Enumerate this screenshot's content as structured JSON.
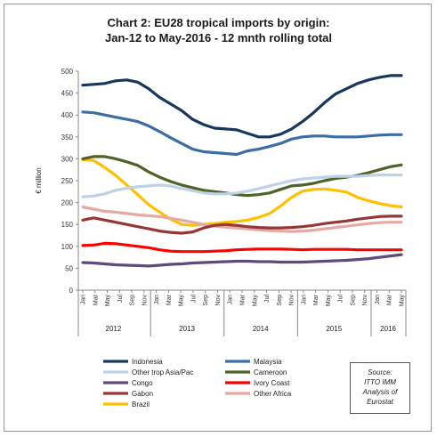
{
  "chart_data": {
    "type": "line",
    "title": "Chart 2: EU28 tropical imports by origin:\nJan-12 to May-2016 - 12 mnth rolling total",
    "ylabel": "€ million",
    "xlabel": "",
    "ylim": [
      0,
      500
    ],
    "yticks": [
      "0",
      "50",
      "100",
      "150",
      "200",
      "250",
      "300",
      "350",
      "400",
      "450",
      "500"
    ],
    "x_tick_labels": [
      "Jan",
      "Mar",
      "May",
      "Jul",
      "Sep",
      "Nov",
      "Jan",
      "Mar",
      "May",
      "Jul",
      "Sep",
      "Nov",
      "Jan",
      "Mar",
      "May",
      "Jul",
      "Sep",
      "Nov",
      "Jan",
      "Mar",
      "May",
      "Jul",
      "Sep",
      "Nov",
      "Jan",
      "Mar",
      "May"
    ],
    "years": [
      "2012",
      "2013",
      "2014",
      "2015",
      "2016"
    ],
    "grid": false,
    "legend_position": "bottom",
    "source_note": "Source:\nITTO IMM\nAnalysis of\nEurostat",
    "series": [
      {
        "name": "Indonesia",
        "color": "#17375e",
        "values": [
          468,
          470,
          472,
          478,
          480,
          475,
          460,
          440,
          425,
          410,
          390,
          378,
          370,
          368,
          366,
          358,
          350,
          350,
          356,
          368,
          385,
          405,
          428,
          448,
          460,
          472,
          480,
          486,
          490,
          490
        ]
      },
      {
        "name": "Malaysia",
        "color": "#3b6ea5",
        "values": [
          407,
          405,
          400,
          395,
          390,
          385,
          375,
          362,
          348,
          335,
          322,
          316,
          314,
          312,
          310,
          318,
          322,
          328,
          335,
          345,
          350,
          352,
          352,
          350,
          350,
          350,
          352,
          354,
          355,
          355
        ]
      },
      {
        "name": "Other trop Asia/Pac",
        "color": "#bdd2e6",
        "values": [
          213,
          215,
          220,
          228,
          233,
          236,
          238,
          240,
          238,
          232,
          227,
          222,
          220,
          220,
          222,
          226,
          232,
          238,
          244,
          250,
          254,
          256,
          258,
          260,
          260,
          260,
          262,
          263,
          263,
          263
        ]
      },
      {
        "name": "Cameroon",
        "color": "#4f6228",
        "values": [
          300,
          305,
          305,
          300,
          293,
          285,
          270,
          258,
          248,
          240,
          234,
          228,
          225,
          222,
          218,
          216,
          218,
          222,
          230,
          238,
          240,
          244,
          250,
          255,
          258,
          262,
          268,
          275,
          282,
          286
        ]
      },
      {
        "name": "Congo",
        "color": "#5e4a7d",
        "values": [
          63,
          62,
          60,
          58,
          57,
          56,
          55,
          57,
          59,
          60,
          62,
          63,
          64,
          65,
          66,
          66,
          65,
          65,
          64,
          64,
          64,
          65,
          66,
          67,
          68,
          70,
          72,
          75,
          78,
          81
        ]
      },
      {
        "name": "Ivory Coast",
        "color": "#ff0000",
        "values": [
          102,
          103,
          107,
          106,
          103,
          100,
          97,
          92,
          89,
          88,
          88,
          88,
          89,
          90,
          92,
          93,
          94,
          94,
          94,
          93,
          92,
          93,
          93,
          93,
          93,
          92,
          92,
          92,
          92,
          92
        ]
      },
      {
        "name": "Gabon",
        "color": "#953735",
        "values": [
          160,
          165,
          160,
          155,
          150,
          145,
          140,
          135,
          132,
          130,
          133,
          142,
          148,
          150,
          148,
          145,
          143,
          142,
          142,
          143,
          145,
          148,
          152,
          155,
          158,
          162,
          165,
          168,
          169,
          169
        ]
      },
      {
        "name": "Other Africa",
        "color": "#e6a9a3",
        "values": [
          190,
          185,
          180,
          178,
          175,
          172,
          170,
          168,
          164,
          160,
          155,
          150,
          146,
          144,
          142,
          140,
          138,
          136,
          135,
          134,
          135,
          137,
          140,
          143,
          146,
          149,
          152,
          154,
          155,
          155
        ]
      },
      {
        "name": "Brazil",
        "color": "#ffc000",
        "values": [
          298,
          296,
          280,
          262,
          240,
          218,
          195,
          178,
          162,
          150,
          148,
          150,
          152,
          155,
          157,
          160,
          166,
          175,
          192,
          212,
          226,
          230,
          231,
          228,
          224,
          212,
          204,
          198,
          193,
          190
        ]
      }
    ]
  }
}
